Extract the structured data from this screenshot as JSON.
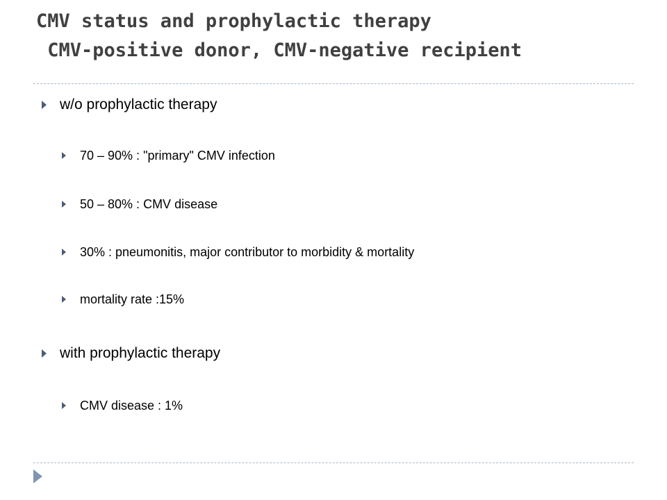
{
  "slide": {
    "title_line1": "CMV status and prophylactic therapy",
    "title_line2": " CMV-positive donor, CMV-negative recipient"
  },
  "bullets": [
    {
      "level": 1,
      "text": "w/o prophylactic therapy"
    },
    {
      "level": 2,
      "text": "70 – 90% : \"primary\" CMV infection"
    },
    {
      "level": 2,
      "text": "50 – 80% : CMV disease"
    },
    {
      "level": 2,
      "text": "30% : pneumonitis, major contributor to morbidity & mortality"
    },
    {
      "level": 2,
      "text": "mortality rate :15%"
    },
    {
      "level": 1,
      "text": "with prophylactic therapy"
    },
    {
      "level": 2,
      "text": "CMV disease : 1%"
    }
  ],
  "icons": {
    "bullet": "triangle-right-icon",
    "footer": "triangle-right-icon"
  },
  "colors": {
    "title": "#404040",
    "bullet_arrow": "#4a5d78",
    "rule": "#aab7c6",
    "footer_mark": "#7f95b2"
  }
}
